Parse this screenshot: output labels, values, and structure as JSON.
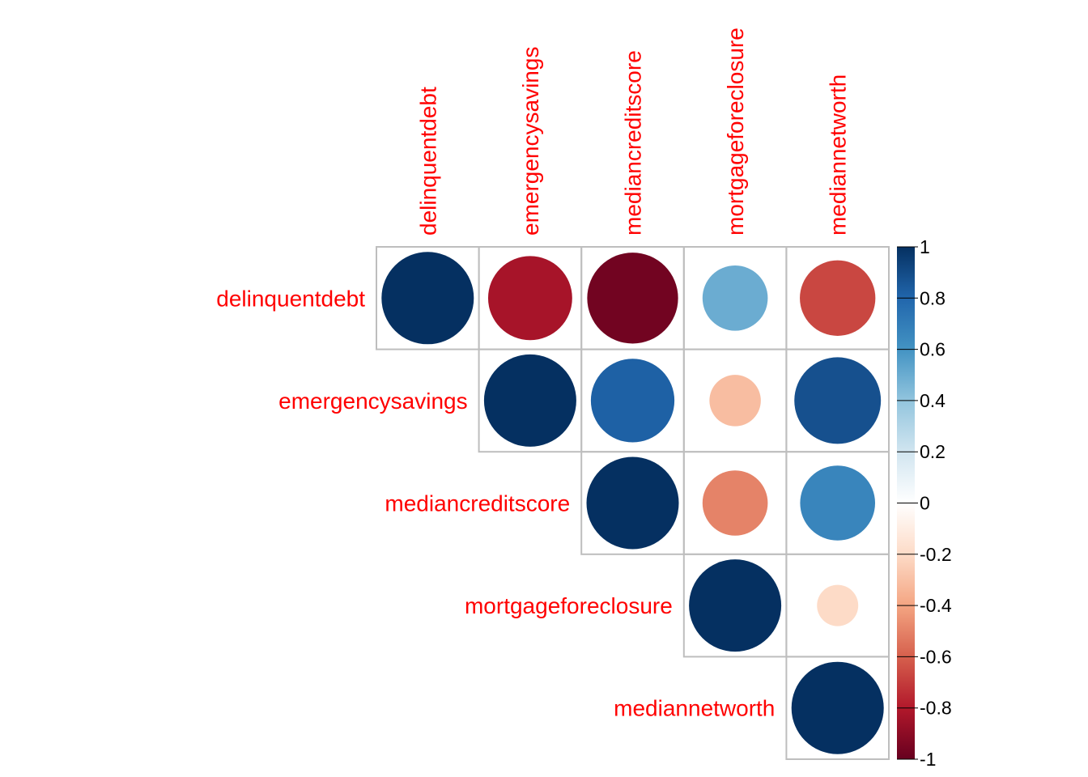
{
  "chart_data": {
    "type": "heatmap",
    "style": "correlation matrix, upper triangle, circle glyphs",
    "variables": [
      "delinquentdebt",
      "emergencysavings",
      "mediancreditscore",
      "mortgageforeclosure",
      "mediannetworth"
    ],
    "matrix": [
      [
        1.0,
        -0.83,
        -0.97,
        0.5,
        -0.67
      ],
      [
        -0.83,
        1.0,
        0.82,
        -0.31,
        0.88
      ],
      [
        -0.97,
        0.82,
        1.0,
        -0.5,
        0.66
      ],
      [
        0.5,
        -0.31,
        -0.5,
        1.0,
        -0.2
      ],
      [
        -0.67,
        0.88,
        0.66,
        -0.2,
        1.0
      ]
    ],
    "colorbar": {
      "range": [
        -1,
        1
      ],
      "ticks": [
        "1",
        "0.8",
        "0.6",
        "0.4",
        "0.2",
        "0",
        "-0.2",
        "-0.4",
        "-0.6",
        "-0.8",
        "-1"
      ],
      "tick_values": [
        1,
        0.8,
        0.6,
        0.4,
        0.2,
        0,
        -0.2,
        -0.4,
        -0.6,
        -0.8,
        -1
      ],
      "colormap": [
        "#67001F",
        "#B2182B",
        "#D6604D",
        "#F4A582",
        "#FDDBC7",
        "#FFFFFF",
        "#D1E5F0",
        "#92C5DE",
        "#4393C3",
        "#2166AC",
        "#053061"
      ],
      "placement": "right"
    },
    "label_color": "#FF0000",
    "grid_color": "#BEBEBE"
  }
}
